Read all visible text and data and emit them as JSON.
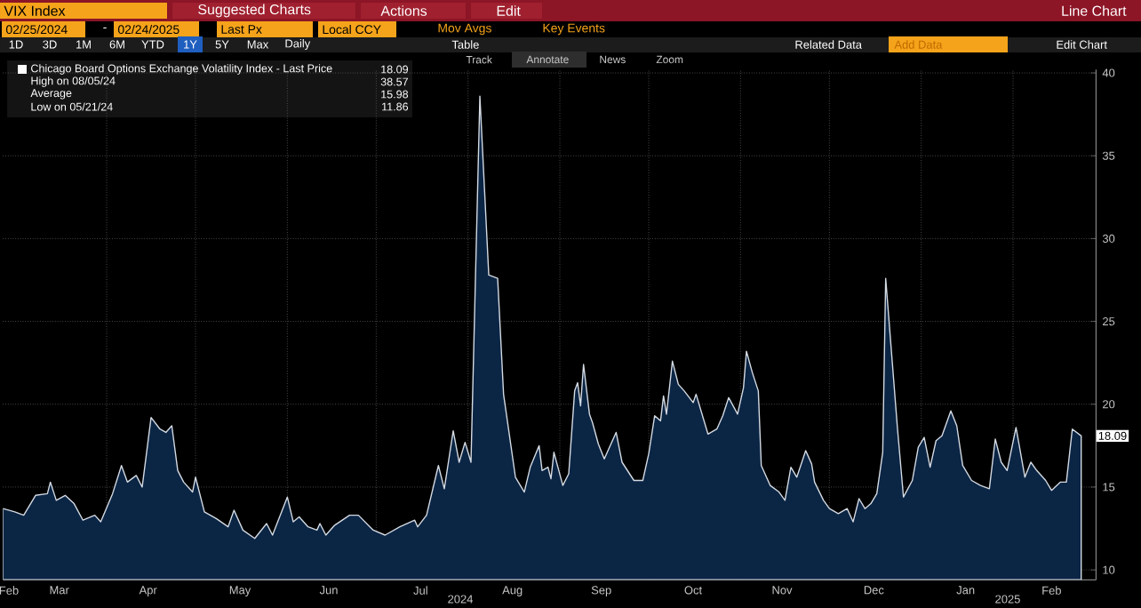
{
  "chart_data": {
    "type": "area",
    "annotations": [
      "VIX Index",
      "Suggested Charts",
      "Actions",
      "Edit",
      "Line Chart",
      "02/25/2024",
      "-",
      "02/24/2025",
      "Last Px",
      "Local CCY",
      "Mov Avgs",
      "Key Events",
      "1D",
      "3D",
      "1M",
      "6M",
      "YTD",
      "1Y",
      "5Y",
      "Max",
      "Daily",
      "Table",
      "Related Data",
      "Add Data",
      "Edit Chart",
      "Track",
      "Annotate",
      "News",
      "Zoom",
      "2024",
      "2025",
      "High on 08/05/24",
      "38.57",
      "Average",
      "15.98",
      "Low on 05/21/24",
      "11.86"
    ],
    "xlim": [
      "2024-02-26",
      "2025-03-01"
    ],
    "xticks": [
      {
        "value": "2024-02-28",
        "label": "Feb"
      },
      {
        "value": "2024-03-16",
        "label": "Mar"
      },
      {
        "value": "2024-04-01",
        "label": null
      },
      {
        "value": "2024-04-15",
        "label": "Apr"
      },
      {
        "value": "2024-05-01",
        "label": null
      },
      {
        "value": "2024-05-16",
        "label": "May"
      },
      {
        "value": "2024-06-01",
        "label": null
      },
      {
        "value": "2024-06-15",
        "label": "Jun"
      },
      {
        "value": "2024-07-01",
        "label": null
      },
      {
        "value": "2024-07-16",
        "label": "Jul"
      },
      {
        "value": "2024-08-01",
        "label": null
      },
      {
        "value": "2024-08-16",
        "label": "Aug"
      },
      {
        "value": "2024-09-01",
        "label": null
      },
      {
        "value": "2024-09-15",
        "label": "Sep"
      },
      {
        "value": "2024-10-01",
        "label": null
      },
      {
        "value": "2024-10-16",
        "label": "Oct"
      },
      {
        "value": "2024-11-01",
        "label": null
      },
      {
        "value": "2024-11-15",
        "label": "Nov"
      },
      {
        "value": "2024-12-01",
        "label": null
      },
      {
        "value": "2024-12-16",
        "label": "Dec"
      },
      {
        "value": "2025-01-01",
        "label": null
      },
      {
        "value": "2025-01-16",
        "label": "Jan"
      },
      {
        "value": "2025-02-01",
        "label": null
      },
      {
        "value": "2025-02-14",
        "label": "Feb"
      }
    ],
    "ylim": [
      9.4,
      40.2
    ],
    "yticks": [
      10,
      15,
      20,
      25,
      30,
      35,
      40
    ],
    "grid": true,
    "legend": "top left",
    "series": [
      {
        "name": "Chicago Board Options Exchange Volatility Index - Last Price",
        "color": "#0b2545",
        "x": [
          "2024-02-26",
          "2024-03-01",
          "2024-03-04",
          "2024-03-08",
          "2024-03-12",
          "2024-03-13",
          "2024-03-15",
          "2024-03-18",
          "2024-03-21",
          "2024-03-24",
          "2024-03-28",
          "2024-03-30",
          "2024-04-03",
          "2024-04-06",
          "2024-04-08",
          "2024-04-11",
          "2024-04-13",
          "2024-04-16",
          "2024-04-19",
          "2024-04-21",
          "2024-04-23",
          "2024-04-25",
          "2024-04-27",
          "2024-04-30",
          "2024-05-01",
          "2024-05-04",
          "2024-05-08",
          "2024-05-12",
          "2024-05-14",
          "2024-05-17",
          "2024-05-21",
          "2024-05-25",
          "2024-05-27",
          "2024-06-01",
          "2024-06-03",
          "2024-06-05",
          "2024-06-08",
          "2024-06-11",
          "2024-06-12",
          "2024-06-14",
          "2024-06-17",
          "2024-06-22",
          "2024-06-25",
          "2024-06-30",
          "2024-07-04",
          "2024-07-09",
          "2024-07-14",
          "2024-07-15",
          "2024-07-18",
          "2024-07-22",
          "2024-07-24",
          "2024-07-27",
          "2024-07-29",
          "2024-07-31",
          "2024-08-02",
          "2024-08-05",
          "2024-08-08",
          "2024-08-11",
          "2024-08-13",
          "2024-08-17",
          "2024-08-20",
          "2024-08-22",
          "2024-08-25",
          "2024-08-26",
          "2024-08-28",
          "2024-08-29",
          "2024-08-30",
          "2024-09-02",
          "2024-09-04",
          "2024-09-06",
          "2024-09-07",
          "2024-09-08",
          "2024-09-09",
          "2024-09-11",
          "2024-09-12",
          "2024-09-14",
          "2024-09-16",
          "2024-09-20",
          "2024-09-22",
          "2024-09-26",
          "2024-09-29",
          "2024-10-01",
          "2024-10-03",
          "2024-10-05",
          "2024-10-06",
          "2024-10-07",
          "2024-10-09",
          "2024-10-11",
          "2024-10-13",
          "2024-10-16",
          "2024-10-17",
          "2024-10-21",
          "2024-10-24",
          "2024-10-26",
          "2024-10-28",
          "2024-10-31",
          "2024-11-02",
          "2024-11-03",
          "2024-11-05",
          "2024-11-07",
          "2024-11-08",
          "2024-11-11",
          "2024-11-14",
          "2024-11-16",
          "2024-11-18",
          "2024-11-20",
          "2024-11-23",
          "2024-11-25",
          "2024-11-26",
          "2024-11-29",
          "2024-12-01",
          "2024-12-04",
          "2024-12-07",
          "2024-12-09",
          "2024-12-11",
          "2024-12-13",
          "2024-12-15",
          "2024-12-17",
          "2024-12-19",
          "2024-12-20",
          "2024-12-24",
          "2024-12-26",
          "2024-12-29",
          "2024-12-31",
          "2025-01-02",
          "2025-01-04",
          "2025-01-06",
          "2025-01-08",
          "2025-01-11",
          "2025-01-13",
          "2025-01-15",
          "2025-01-18",
          "2025-01-21",
          "2025-01-24",
          "2025-01-26",
          "2025-01-28",
          "2025-01-30",
          "2025-02-02",
          "2025-02-05",
          "2025-02-07",
          "2025-02-09",
          "2025-02-12",
          "2025-02-14",
          "2025-02-17",
          "2025-02-19",
          "2025-02-21",
          "2025-02-24"
        ],
        "values": [
          13.7,
          13.5,
          13.3,
          14.5,
          14.6,
          15.3,
          14.2,
          14.5,
          14.0,
          13.0,
          13.3,
          12.9,
          14.6,
          16.3,
          15.3,
          15.7,
          15.0,
          19.2,
          18.5,
          18.3,
          18.7,
          16.0,
          15.3,
          14.7,
          15.6,
          13.5,
          13.1,
          12.6,
          13.6,
          12.4,
          11.9,
          12.8,
          12.1,
          14.4,
          12.9,
          13.2,
          12.6,
          12.4,
          12.8,
          12.1,
          12.7,
          13.3,
          13.3,
          12.4,
          12.1,
          12.6,
          13.0,
          12.6,
          13.3,
          16.3,
          14.9,
          18.4,
          16.5,
          17.7,
          16.5,
          38.6,
          27.8,
          27.6,
          20.6,
          15.6,
          14.7,
          16.2,
          17.5,
          16.0,
          16.2,
          15.5,
          17.1,
          15.1,
          15.8,
          20.8,
          21.3,
          19.9,
          22.4,
          19.4,
          18.9,
          17.6,
          16.7,
          18.3,
          16.5,
          15.4,
          15.4,
          17.0,
          19.3,
          19.0,
          20.5,
          19.4,
          22.6,
          21.2,
          20.8,
          20.1,
          20.6,
          18.2,
          18.5,
          19.3,
          20.4,
          19.4,
          21.0,
          23.2,
          21.9,
          20.8,
          16.3,
          15.1,
          14.7,
          14.2,
          16.2,
          15.6,
          17.2,
          16.4,
          15.3,
          14.2,
          13.7,
          13.4,
          13.7,
          12.9,
          14.3,
          13.7,
          14.0,
          14.6,
          17.1,
          27.6,
          18.5,
          14.4,
          15.4,
          17.4,
          18.0,
          16.2,
          17.8,
          18.1,
          19.6,
          18.7,
          16.3,
          15.4,
          15.1,
          14.9,
          17.9,
          16.5,
          16.0,
          18.6,
          15.6,
          16.5,
          16.0,
          15.4,
          14.8,
          15.3,
          15.3,
          18.5,
          18.09
        ],
        "value_labels": [
          null,
          null,
          null,
          null,
          null,
          null,
          null,
          null,
          null,
          null,
          null,
          null,
          null,
          null,
          null,
          null,
          null,
          null,
          null,
          null,
          null,
          null,
          null,
          null,
          null,
          null,
          null,
          null,
          null,
          null,
          null,
          null,
          null,
          null,
          null,
          null,
          null,
          null,
          null,
          null,
          null,
          null,
          null,
          null,
          null,
          null,
          null,
          null,
          null,
          null,
          null,
          null,
          null,
          null,
          null,
          null,
          null,
          null,
          null,
          null,
          null,
          null,
          null,
          null,
          null,
          null,
          null,
          null,
          null,
          null,
          null,
          null,
          null,
          null,
          null,
          null,
          null,
          null,
          null,
          null,
          null,
          null,
          null,
          null,
          null,
          null,
          null,
          null,
          null,
          null,
          null,
          null,
          null,
          null,
          null,
          null,
          null,
          null,
          null,
          null,
          null,
          null,
          null,
          null,
          null,
          null,
          null,
          null,
          null,
          null,
          null,
          null,
          null,
          null,
          null,
          null,
          null,
          null,
          null,
          null,
          null,
          null,
          null,
          null,
          null,
          null,
          null,
          null,
          null,
          null,
          null,
          null,
          null,
          null,
          null,
          null,
          null,
          null,
          null,
          null,
          null,
          null,
          null,
          null,
          null,
          null,
          "18.09"
        ]
      }
    ]
  }
}
